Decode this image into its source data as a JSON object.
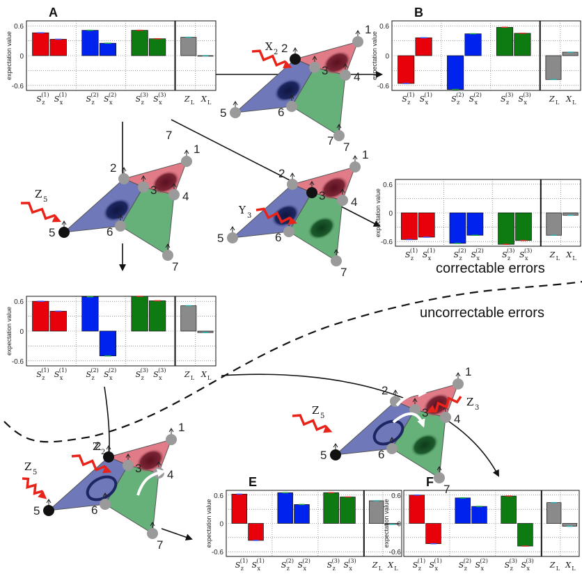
{
  "colors": {
    "red": "#e8000b",
    "blue": "#0022ee",
    "green": "#0e7a12",
    "gray": "#8a8a8a",
    "plaquette_red": "#e07b87",
    "plaquette_blue": "#6f78b8",
    "plaquette_green": "#66b079",
    "qubit": "#9a9a9a",
    "error_arrow": "#e8231a"
  },
  "labels": {
    "ylabel": "expectation value",
    "ticks": [
      "0.6",
      "0",
      "-0.6"
    ],
    "stabilizer_base": [
      "S",
      "S",
      "S",
      "S",
      "S",
      "S"
    ],
    "stabilizer_sub": [
      "z",
      "x",
      "z",
      "x",
      "z",
      "x"
    ],
    "stabilizer_sup": [
      "(1)",
      "(1)",
      "(2)",
      "(2)",
      "(3)",
      "(3)"
    ],
    "logical": [
      "Z",
      "X"
    ],
    "logical_sub": [
      "L",
      "L"
    ]
  },
  "regions": {
    "correctable": "correctable errors",
    "uncorrectable": "uncorrectable errors"
  },
  "qubit_numbers": [
    "1",
    "2",
    "3",
    "4",
    "5",
    "6",
    "7"
  ],
  "errors": {
    "x2": {
      "op": "X",
      "sub": "2"
    },
    "z5": {
      "op": "Z",
      "sub": "5"
    },
    "y3": {
      "op": "Y",
      "sub": "3"
    },
    "z2": {
      "op": "Z",
      "sub": "2"
    },
    "z3": {
      "op": "Z",
      "sub": "3"
    }
  },
  "chart_data": [
    {
      "id": "A",
      "type": "bar",
      "title": "A",
      "categories": [
        "S_z^(1)",
        "S_x^(1)",
        "S_z^(2)",
        "S_x^(2)",
        "S_z^(3)",
        "S_x^(3)",
        "Z_L",
        "X_L"
      ],
      "values": [
        0.46,
        0.33,
        0.51,
        0.25,
        0.51,
        0.34,
        0.37,
        0.0
      ],
      "ylabel": "expectation value",
      "ylim": [
        -0.7,
        0.7
      ]
    },
    {
      "id": "B",
      "type": "bar",
      "title": "B",
      "categories": [
        "S_z^(1)",
        "S_x^(1)",
        "S_z^(2)",
        "S_x^(2)",
        "S_z^(3)",
        "S_x^(3)",
        "Z_L",
        "X_L"
      ],
      "values": [
        -0.56,
        0.36,
        -0.68,
        0.44,
        0.57,
        0.45,
        -0.48,
        0.07
      ],
      "ylabel": "expectation value",
      "ylim": [
        -0.7,
        0.7
      ]
    },
    {
      "id": "C",
      "type": "bar",
      "title": "",
      "categories": [
        "S_z^(1)",
        "S_x^(1)",
        "S_z^(2)",
        "S_x^(2)",
        "S_z^(3)",
        "S_x^(3)",
        "Z_L",
        "X_L"
      ],
      "values": [
        -0.56,
        -0.51,
        -0.64,
        -0.47,
        -0.66,
        -0.58,
        -0.47,
        -0.05
      ],
      "ylabel": "expectation value",
      "ylim": [
        -0.7,
        0.7
      ]
    },
    {
      "id": "D",
      "type": "bar",
      "title": "",
      "categories": [
        "S_z^(1)",
        "S_x^(1)",
        "S_z^(2)",
        "S_x^(2)",
        "S_z^(3)",
        "S_x^(3)",
        "Z_L",
        "X_L"
      ],
      "values": [
        0.6,
        0.4,
        0.69,
        -0.5,
        0.7,
        0.61,
        0.51,
        -0.03
      ],
      "ylabel": "expectation value",
      "ylim": [
        -0.7,
        0.7
      ]
    },
    {
      "id": "E",
      "type": "bar",
      "title": "E",
      "categories": [
        "S_z^(1)",
        "S_x^(1)",
        "S_z^(2)",
        "S_x^(2)",
        "S_z^(3)",
        "S_x^(3)",
        "Z_L",
        "X_L"
      ],
      "values": [
        0.62,
        -0.36,
        0.65,
        0.4,
        0.65,
        0.56,
        0.48,
        -0.02
      ],
      "ylabel": "expectation value",
      "ylim": [
        -0.7,
        0.7
      ]
    },
    {
      "id": "F",
      "type": "bar",
      "title": "F",
      "categories": [
        "S_z^(1)",
        "S_x^(1)",
        "S_z^(2)",
        "S_x^(2)",
        "S_z^(3)",
        "S_x^(3)",
        "Z_L",
        "X_L"
      ],
      "values": [
        0.6,
        -0.43,
        0.54,
        0.36,
        0.58,
        -0.48,
        0.44,
        -0.06
      ],
      "ylabel": "expectation value",
      "ylim": [
        -0.7,
        0.7
      ]
    }
  ]
}
